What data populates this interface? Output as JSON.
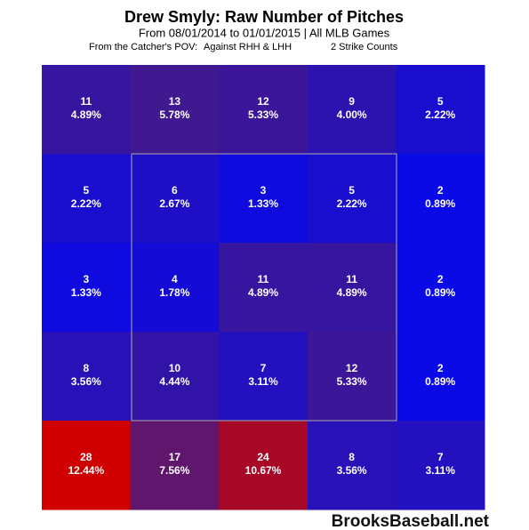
{
  "chart_data": {
    "type": "heatmap",
    "title": "Drew Smyly: Raw Number of Pitches",
    "subtitle": "From 08/01/2014 to 01/01/2015 | All MLB Games",
    "notes": [
      "From the Catcher's POV:",
      "Against RHH & LHH",
      "2 Strike Counts"
    ],
    "watermark": "BrooksBaseball.net",
    "values": [
      [
        11,
        13,
        12,
        9,
        5
      ],
      [
        5,
        6,
        3,
        5,
        2
      ],
      [
        3,
        4,
        11,
        11,
        2
      ],
      [
        8,
        10,
        7,
        12,
        2
      ],
      [
        28,
        17,
        24,
        8,
        7
      ]
    ],
    "percents": [
      [
        4.89,
        5.78,
        5.33,
        4.0,
        2.22
      ],
      [
        2.22,
        2.67,
        1.33,
        2.22,
        0.89
      ],
      [
        1.33,
        1.78,
        4.89,
        4.89,
        0.89
      ],
      [
        3.56,
        4.44,
        3.11,
        5.33,
        0.89
      ],
      [
        12.44,
        7.56,
        10.67,
        3.56,
        3.11
      ]
    ],
    "value_labels": [
      [
        "4.89%",
        "5.78%",
        "5.33%",
        "4.00%",
        "2.22%"
      ],
      [
        "2.22%",
        "2.67%",
        "1.33%",
        "2.22%",
        "0.89%"
      ],
      [
        "1.33%",
        "1.78%",
        "4.89%",
        "4.89%",
        "0.89%"
      ],
      [
        "3.56%",
        "4.44%",
        "3.11%",
        "5.33%",
        "0.89%"
      ],
      [
        "12.44%",
        "7.56%",
        "10.67%",
        "3.56%",
        "3.11%"
      ]
    ],
    "colorscale": [
      "#0a0ae6",
      "#4a1a80",
      "#d00000"
    ]
  }
}
